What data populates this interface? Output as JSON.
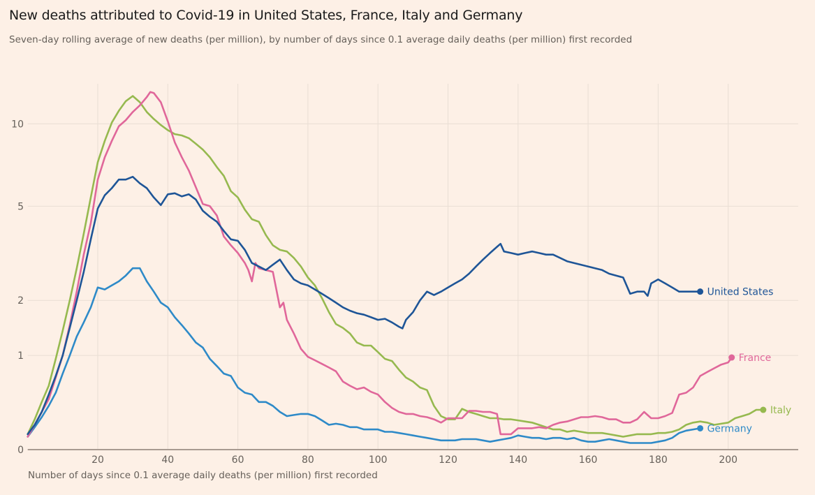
{
  "chart_data": {
    "type": "line",
    "title": "New deaths attributed to Covid-19 in United States, France, Italy and Germany",
    "subtitle": "Seven-day rolling average of new deaths (per million), by number of days since 0.1 average daily deaths (per million) first recorded",
    "xlabel": "Number of days since 0.1 average daily deaths (per million) first recorded",
    "ylabel": "",
    "y_scale": "log(1+y)",
    "xlim": [
      0,
      220
    ],
    "ylim": [
      0,
      13
    ],
    "x_ticks": [
      20,
      40,
      60,
      80,
      100,
      120,
      140,
      160,
      180,
      200
    ],
    "x_tick_labels": [
      "20",
      "40",
      "60",
      "80",
      "100",
      "120",
      "140",
      "160",
      "180",
      "200"
    ],
    "y_ticks": [
      0,
      1,
      2,
      5,
      10
    ],
    "y_tick_labels": [
      "0",
      "1",
      "2",
      "5",
      "10"
    ],
    "grid": true,
    "legend": "direct labels at line ends",
    "series": [
      {
        "name": "United States",
        "color": "#1e5597",
        "x": [
          0,
          2,
          4,
          6,
          8,
          10,
          12,
          14,
          16,
          18,
          20,
          22,
          24,
          26,
          28,
          30,
          32,
          34,
          36,
          38,
          40,
          42,
          44,
          46,
          48,
          50,
          52,
          54,
          56,
          58,
          60,
          62,
          64,
          66,
          68,
          70,
          72,
          74,
          76,
          78,
          80,
          82,
          84,
          86,
          88,
          90,
          92,
          94,
          96,
          98,
          100,
          102,
          104,
          106,
          107,
          108,
          110,
          112,
          114,
          116,
          118,
          120,
          122,
          124,
          126,
          128,
          130,
          132,
          134,
          135,
          136,
          138,
          140,
          142,
          144,
          146,
          148,
          150,
          152,
          154,
          156,
          158,
          160,
          162,
          164,
          166,
          168,
          170,
          172,
          174,
          176,
          177,
          178,
          180,
          182,
          184,
          186,
          188,
          190,
          192
        ],
        "values": [
          0.12,
          0.2,
          0.32,
          0.5,
          0.72,
          1.0,
          1.45,
          2.0,
          2.7,
          3.7,
          4.9,
          5.5,
          5.85,
          6.3,
          6.3,
          6.45,
          6.1,
          5.85,
          5.4,
          5.05,
          5.55,
          5.6,
          5.45,
          5.55,
          5.3,
          4.8,
          4.55,
          4.35,
          4.0,
          3.7,
          3.65,
          3.35,
          2.95,
          2.85,
          2.75,
          2.9,
          3.05,
          2.75,
          2.5,
          2.4,
          2.35,
          2.25,
          2.15,
          2.05,
          1.95,
          1.85,
          1.78,
          1.73,
          1.7,
          1.65,
          1.6,
          1.62,
          1.55,
          1.47,
          1.44,
          1.6,
          1.75,
          2.0,
          2.2,
          2.12,
          2.2,
          2.3,
          2.4,
          2.5,
          2.65,
          2.85,
          3.05,
          3.25,
          3.45,
          3.55,
          3.3,
          3.25,
          3.2,
          3.25,
          3.3,
          3.25,
          3.2,
          3.2,
          3.1,
          3.0,
          2.95,
          2.9,
          2.85,
          2.8,
          2.75,
          2.65,
          2.6,
          2.55,
          2.15,
          2.2,
          2.2,
          2.1,
          2.4,
          2.5,
          2.4,
          2.3,
          2.2,
          2.2,
          2.2,
          2.2
        ]
      },
      {
        "name": "France",
        "color": "#e0679a",
        "x": [
          0,
          2,
          4,
          6,
          8,
          10,
          12,
          14,
          16,
          18,
          20,
          22,
          24,
          26,
          28,
          30,
          32,
          34,
          35,
          36,
          38,
          40,
          42,
          44,
          46,
          48,
          50,
          52,
          54,
          56,
          58,
          60,
          62,
          63,
          64,
          65,
          66,
          68,
          70,
          72,
          73,
          74,
          76,
          78,
          80,
          82,
          84,
          86,
          88,
          90,
          92,
          94,
          96,
          98,
          100,
          102,
          104,
          106,
          108,
          110,
          112,
          114,
          116,
          118,
          120,
          122,
          124,
          126,
          128,
          130,
          132,
          134,
          135,
          136,
          138,
          140,
          142,
          144,
          146,
          148,
          150,
          152,
          154,
          156,
          158,
          160,
          162,
          164,
          166,
          168,
          170,
          172,
          174,
          176,
          178,
          180,
          182,
          184,
          186,
          188,
          190,
          192,
          194,
          196,
          198,
          200,
          201
        ],
        "values": [
          0.1,
          0.2,
          0.32,
          0.45,
          0.7,
          1.0,
          1.5,
          2.2,
          3.2,
          4.3,
          6.3,
          7.6,
          8.7,
          9.8,
          10.3,
          11.0,
          11.6,
          12.4,
          12.9,
          12.8,
          11.9,
          10.2,
          8.6,
          7.6,
          6.8,
          5.9,
          5.1,
          5.0,
          4.6,
          3.8,
          3.5,
          3.25,
          2.95,
          2.75,
          2.45,
          2.95,
          2.8,
          2.75,
          2.7,
          1.85,
          1.95,
          1.6,
          1.35,
          1.1,
          0.98,
          0.93,
          0.88,
          0.83,
          0.78,
          0.65,
          0.6,
          0.56,
          0.58,
          0.53,
          0.5,
          0.42,
          0.36,
          0.32,
          0.3,
          0.3,
          0.28,
          0.27,
          0.25,
          0.22,
          0.26,
          0.26,
          0.26,
          0.33,
          0.33,
          0.32,
          0.32,
          0.3,
          0.12,
          0.12,
          0.12,
          0.17,
          0.17,
          0.17,
          0.18,
          0.17,
          0.2,
          0.22,
          0.23,
          0.25,
          0.27,
          0.27,
          0.28,
          0.27,
          0.25,
          0.25,
          0.22,
          0.22,
          0.25,
          0.32,
          0.26,
          0.26,
          0.28,
          0.31,
          0.5,
          0.52,
          0.58,
          0.72,
          0.77,
          0.82,
          0.87,
          0.9,
          0.97
        ]
      },
      {
        "name": "Italy",
        "color": "#96b94f",
        "x": [
          0,
          2,
          4,
          6,
          8,
          10,
          12,
          14,
          16,
          18,
          20,
          22,
          24,
          26,
          28,
          30,
          32,
          34,
          36,
          38,
          40,
          42,
          44,
          46,
          48,
          50,
          52,
          54,
          56,
          58,
          60,
          62,
          64,
          66,
          68,
          70,
          72,
          74,
          76,
          78,
          80,
          82,
          84,
          86,
          88,
          90,
          92,
          94,
          96,
          98,
          100,
          102,
          104,
          106,
          108,
          110,
          112,
          114,
          116,
          118,
          120,
          122,
          124,
          126,
          128,
          130,
          132,
          134,
          136,
          138,
          140,
          142,
          144,
          146,
          148,
          150,
          152,
          154,
          156,
          158,
          160,
          162,
          164,
          166,
          168,
          170,
          172,
          174,
          176,
          178,
          180,
          182,
          184,
          186,
          188,
          190,
          192,
          194,
          196,
          198,
          200,
          202,
          204,
          206,
          208,
          210
        ],
        "values": [
          0.12,
          0.25,
          0.42,
          0.6,
          0.95,
          1.4,
          2.0,
          2.8,
          3.9,
          5.4,
          7.3,
          8.7,
          10.1,
          11.1,
          12.0,
          12.5,
          11.9,
          11.0,
          10.4,
          9.9,
          9.5,
          9.2,
          9.1,
          8.9,
          8.5,
          8.1,
          7.6,
          7.0,
          6.5,
          5.7,
          5.4,
          4.85,
          4.45,
          4.35,
          3.85,
          3.5,
          3.35,
          3.3,
          3.1,
          2.85,
          2.55,
          2.35,
          2.05,
          1.75,
          1.52,
          1.45,
          1.35,
          1.2,
          1.15,
          1.15,
          1.05,
          0.95,
          0.92,
          0.8,
          0.7,
          0.65,
          0.58,
          0.55,
          0.38,
          0.28,
          0.25,
          0.25,
          0.35,
          0.32,
          0.3,
          0.28,
          0.26,
          0.26,
          0.25,
          0.25,
          0.24,
          0.23,
          0.22,
          0.2,
          0.18,
          0.16,
          0.16,
          0.14,
          0.15,
          0.14,
          0.13,
          0.13,
          0.13,
          0.12,
          0.11,
          0.1,
          0.11,
          0.12,
          0.12,
          0.12,
          0.13,
          0.13,
          0.14,
          0.16,
          0.2,
          0.22,
          0.23,
          0.22,
          0.2,
          0.21,
          0.22,
          0.26,
          0.28,
          0.3,
          0.34,
          0.34
        ]
      },
      {
        "name": "Germany",
        "color": "#2e8ac8",
        "x": [
          0,
          2,
          4,
          6,
          8,
          10,
          12,
          14,
          16,
          18,
          20,
          22,
          24,
          26,
          28,
          30,
          32,
          34,
          36,
          38,
          40,
          42,
          44,
          46,
          48,
          50,
          52,
          54,
          56,
          58,
          60,
          62,
          64,
          66,
          68,
          70,
          72,
          74,
          76,
          78,
          80,
          82,
          84,
          86,
          88,
          90,
          92,
          94,
          96,
          98,
          100,
          102,
          104,
          106,
          108,
          110,
          112,
          114,
          116,
          118,
          120,
          122,
          124,
          126,
          128,
          130,
          132,
          134,
          136,
          138,
          140,
          142,
          144,
          146,
          148,
          150,
          152,
          154,
          156,
          158,
          160,
          162,
          164,
          166,
          168,
          170,
          172,
          174,
          176,
          178,
          180,
          182,
          184,
          186,
          188,
          190,
          192
        ],
        "values": [
          0.1,
          0.18,
          0.27,
          0.38,
          0.52,
          0.75,
          1.0,
          1.3,
          1.55,
          1.85,
          2.3,
          2.25,
          2.35,
          2.45,
          2.6,
          2.8,
          2.8,
          2.45,
          2.2,
          1.95,
          1.85,
          1.65,
          1.5,
          1.35,
          1.2,
          1.12,
          0.95,
          0.85,
          0.75,
          0.72,
          0.58,
          0.52,
          0.5,
          0.42,
          0.42,
          0.38,
          0.32,
          0.28,
          0.29,
          0.3,
          0.3,
          0.28,
          0.24,
          0.2,
          0.21,
          0.2,
          0.18,
          0.18,
          0.16,
          0.16,
          0.16,
          0.14,
          0.14,
          0.13,
          0.12,
          0.11,
          0.1,
          0.09,
          0.08,
          0.07,
          0.07,
          0.07,
          0.08,
          0.08,
          0.08,
          0.07,
          0.06,
          0.07,
          0.08,
          0.09,
          0.11,
          0.1,
          0.09,
          0.09,
          0.08,
          0.09,
          0.09,
          0.08,
          0.09,
          0.07,
          0.06,
          0.06,
          0.07,
          0.08,
          0.07,
          0.06,
          0.05,
          0.05,
          0.05,
          0.05,
          0.06,
          0.07,
          0.09,
          0.13,
          0.15,
          0.16,
          0.17
        ]
      }
    ]
  }
}
